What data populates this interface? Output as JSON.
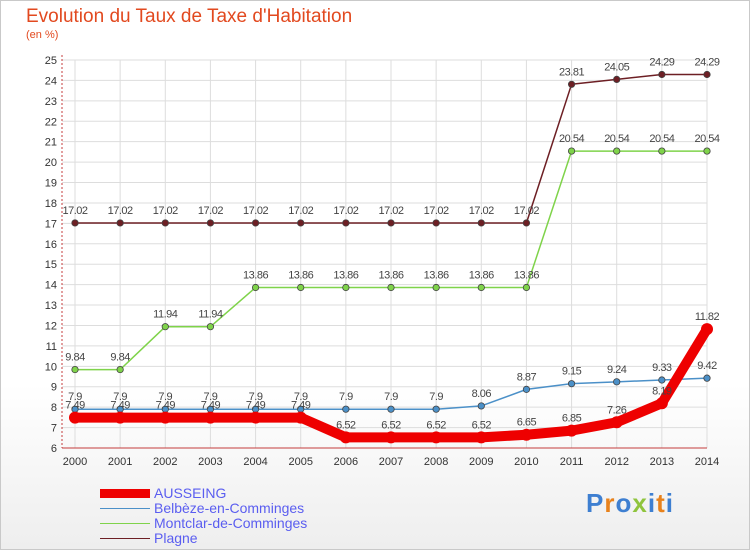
{
  "title": "Evolution du Taux de Taxe d'Habitation",
  "subtitle": "(en %)",
  "logo": "Proxiti",
  "chart_data": {
    "type": "line",
    "title": "Evolution du Taux de Taxe d'Habitation",
    "ylabel": "(en %)",
    "xlabel": "",
    "grid": true,
    "ylim": [
      6,
      25
    ],
    "yticks": [
      6,
      7,
      8,
      9,
      10,
      11,
      12,
      13,
      14,
      15,
      16,
      17,
      18,
      19,
      20,
      21,
      22,
      23,
      24,
      25
    ],
    "categories": [
      "2000",
      "2001",
      "2002",
      "2003",
      "2004",
      "2005",
      "2006",
      "2007",
      "2008",
      "2009",
      "2010",
      "2011",
      "2012",
      "2013",
      "2014"
    ],
    "series": [
      {
        "name": "Plagne",
        "color": "#6d1f24",
        "values": [
          17.02,
          17.02,
          17.02,
          17.02,
          17.02,
          17.02,
          17.02,
          17.02,
          17.02,
          17.02,
          17.02,
          23.81,
          24.05,
          24.29,
          24.29
        ],
        "labels": [
          "17.02",
          "17.02",
          "17.02",
          "17.02",
          "17.02",
          "17.02",
          "17.02",
          "17.02",
          "17.02",
          "17.02",
          "17.02",
          "23.81",
          "24.05",
          "24.29",
          "24.29"
        ]
      },
      {
        "name": "Montclar-de-Comminges",
        "color": "#7fd34a",
        "values": [
          9.84,
          9.84,
          11.94,
          11.94,
          13.86,
          13.86,
          13.86,
          13.86,
          13.86,
          13.86,
          13.86,
          20.54,
          20.54,
          20.54,
          20.54
        ],
        "labels": [
          "9.84",
          "9.84",
          "11.94",
          "11.94",
          "13.86",
          "13.86",
          "13.86",
          "13.86",
          "13.86",
          "13.86",
          "13.86",
          "20.54",
          "20.54",
          "20.54",
          "20.54"
        ]
      },
      {
        "name": "Belbèze-en-Comminges",
        "color": "#4b90c8",
        "values": [
          7.9,
          7.9,
          7.9,
          7.9,
          7.9,
          7.9,
          7.9,
          7.9,
          7.9,
          8.06,
          8.87,
          9.15,
          9.24,
          9.33,
          9.42
        ],
        "labels": [
          "7.9",
          "7.9",
          "7.9",
          "7.9",
          "7.9",
          "7.9",
          "7.9",
          "7.9",
          "7.9",
          "8.06",
          "8.87",
          "9.15",
          "9.24",
          "9.33",
          "9.42"
        ]
      },
      {
        "name": "AUSSEING",
        "color": "#ee0000",
        "values": [
          7.49,
          7.49,
          7.49,
          7.49,
          7.49,
          7.49,
          6.52,
          6.52,
          6.52,
          6.52,
          6.65,
          6.85,
          7.26,
          8.19,
          11.82
        ],
        "labels": [
          "7.49",
          "7.49",
          "7.49",
          "7.49",
          "7.49",
          "7.49",
          "6.52",
          "6.52",
          "6.52",
          "6.52",
          "6.65",
          "6.85",
          "7.26",
          "8.19",
          "11.82"
        ]
      }
    ],
    "legend": [
      {
        "name": "AUSSEING",
        "color": "#ee0000",
        "width": 9
      },
      {
        "name": "Belbèze-en-Comminges",
        "color": "#4b90c8",
        "width": 1.5
      },
      {
        "name": "Montclar-de-Comminges",
        "color": "#7fd34a",
        "width": 1.5
      },
      {
        "name": "Plagne",
        "color": "#6d1f24",
        "width": 1.5
      }
    ]
  }
}
